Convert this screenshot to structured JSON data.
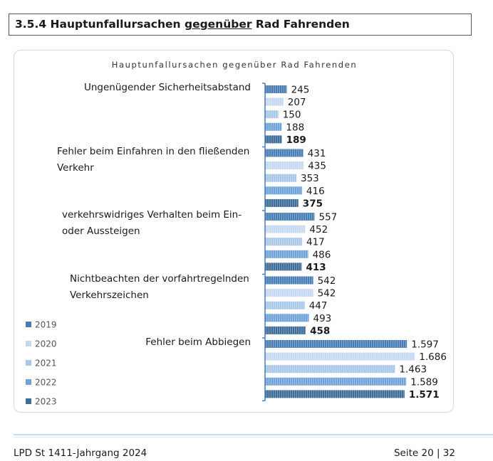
{
  "section": {
    "number": "3.5.4",
    "title_pre": "Hauptunfallursachen",
    "title_ul": "gegenüber",
    "title_post": "Rad Fahrenden"
  },
  "chart_data": {
    "type": "bar",
    "orientation": "horizontal",
    "title": "Hauptunfallursachen gegenüber Rad Fahrenden",
    "categories": [
      "Ungenügender Sicherheitsabstand",
      "Fehler beim Einfahren in den fließenden Verkehr",
      "verkehrswidriges Verhalten beim Ein- oder Aussteigen",
      "Nichtbeachten der vorfahrtregelnden Verkehrszeichen",
      "Fehler beim Abbiegen"
    ],
    "category_lines": [
      [
        "Ungenügender Sicherheitsabstand"
      ],
      [
        "Fehler beim Einfahren in den fließenden",
        "Verkehr"
      ],
      [
        "verkehrswidriges Verhalten beim Ein-",
        "oder Aussteigen"
      ],
      [
        "Nichtbeachten der vorfahrtregelnden",
        "Verkehrszeichen"
      ],
      [
        "Fehler beim Abbiegen"
      ]
    ],
    "series": [
      {
        "name": "2019",
        "color": "#4a7fb5",
        "values": [
          245,
          431,
          557,
          542,
          1597
        ],
        "labels": [
          "245",
          "431",
          "557",
          "542",
          "1.597"
        ]
      },
      {
        "name": "2020",
        "color": "#c5d9f0",
        "values": [
          207,
          435,
          452,
          542,
          1686
        ],
        "labels": [
          "207",
          "435",
          "452",
          "542",
          "1.686"
        ]
      },
      {
        "name": "2021",
        "color": "#a9c7e8",
        "values": [
          150,
          353,
          417,
          447,
          1463
        ],
        "labels": [
          "150",
          "353",
          "417",
          "447",
          "1.463"
        ]
      },
      {
        "name": "2022",
        "color": "#6fa3d9",
        "values": [
          188,
          416,
          486,
          493,
          1589
        ],
        "labels": [
          "188",
          "416",
          "486",
          "493",
          "1.589"
        ]
      },
      {
        "name": "2023",
        "color": "#3f6d9a",
        "values": [
          189,
          375,
          413,
          458,
          1571
        ],
        "labels": [
          "189",
          "375",
          "413",
          "458",
          "1.571"
        ]
      }
    ],
    "bold_series": "2023",
    "xlim": [
      0,
      1700
    ],
    "grid": false,
    "legend_position": "left"
  },
  "footer": {
    "left": "LPD St 1411-Jahrgang 2024",
    "right": "Seite 20 | 32"
  }
}
